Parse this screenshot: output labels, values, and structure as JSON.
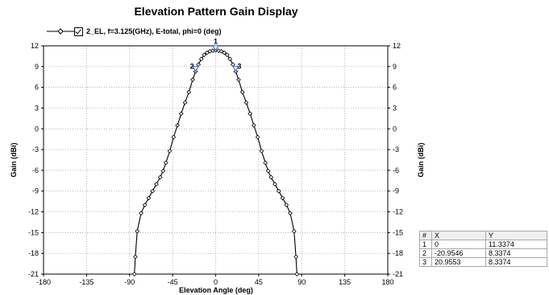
{
  "chart_data": {
    "type": "line",
    "title": "Elevation Pattern Gain Display",
    "xlabel": "Elevation Angle (deg)",
    "ylabel": "Gain (dBi)",
    "y2label": "Gain (dBi)",
    "xlim": [
      -180,
      180
    ],
    "ylim": [
      -21,
      12
    ],
    "xticks": [
      "-180",
      "-135",
      "-90",
      "-45",
      "0",
      "45",
      "90",
      "135",
      "180"
    ],
    "yticks": [
      "-21",
      "-18",
      "-15",
      "-12",
      "-9",
      "-6",
      "-3",
      "0",
      "3",
      "6",
      "9",
      "12"
    ],
    "grid": "dotted",
    "legend_position": "top-left",
    "series": [
      {
        "name": "2_EL, f=3.125(GHz), E-total, phi=0 (deg)",
        "color": "#000000",
        "x": [
          -85,
          -84,
          -82,
          -78,
          -74,
          -70,
          -66,
          -62,
          -58,
          -55,
          -52,
          -48,
          -44,
          -40,
          -36,
          -32,
          -28,
          -24,
          -21,
          -18,
          -15,
          -12,
          -9,
          -6,
          -3,
          0,
          3,
          6,
          9,
          12,
          15,
          18,
          21,
          24,
          28,
          32,
          36,
          40,
          44,
          48,
          52,
          55,
          58,
          62,
          66,
          70,
          74,
          78,
          82,
          84,
          85
        ],
        "y": [
          -21,
          -18.5,
          -14.8,
          -12.2,
          -11,
          -10,
          -9,
          -8,
          -7,
          -6.1,
          -4.9,
          -3.2,
          -1.2,
          0.5,
          2.2,
          3.8,
          5.3,
          7.1,
          8.3,
          9.3,
          10.1,
          10.7,
          11,
          11.2,
          11.3,
          11.34,
          11.3,
          11.2,
          11,
          10.7,
          10.1,
          9.3,
          8.3,
          7.1,
          5.3,
          3.8,
          2.2,
          0.5,
          -1.2,
          -3.2,
          -4.9,
          -6.1,
          -7,
          -8,
          -9,
          -10,
          -11,
          -12.2,
          -14.8,
          -18.5,
          -21
        ]
      }
    ],
    "markers": [
      {
        "id": "1",
        "x": 0,
        "y": 11.3374,
        "label_x": "0",
        "label_y": "11.3374"
      },
      {
        "id": "2",
        "x": -20.9546,
        "y": 8.3374,
        "label_x": "-20.9546",
        "label_y": "8.3374"
      },
      {
        "id": "3",
        "x": 20.9553,
        "y": 8.3374,
        "label_x": "20.9553",
        "label_y": "8.3374"
      }
    ],
    "marker_color": "#3a6fd8"
  },
  "marker_table": {
    "headers": [
      "#",
      "X",
      "Y"
    ],
    "rows": [
      [
        "1",
        "0",
        "11.3374"
      ],
      [
        "2",
        "-20.9546",
        "8.3374"
      ],
      [
        "3",
        "20.9553",
        "8.3374"
      ]
    ]
  }
}
